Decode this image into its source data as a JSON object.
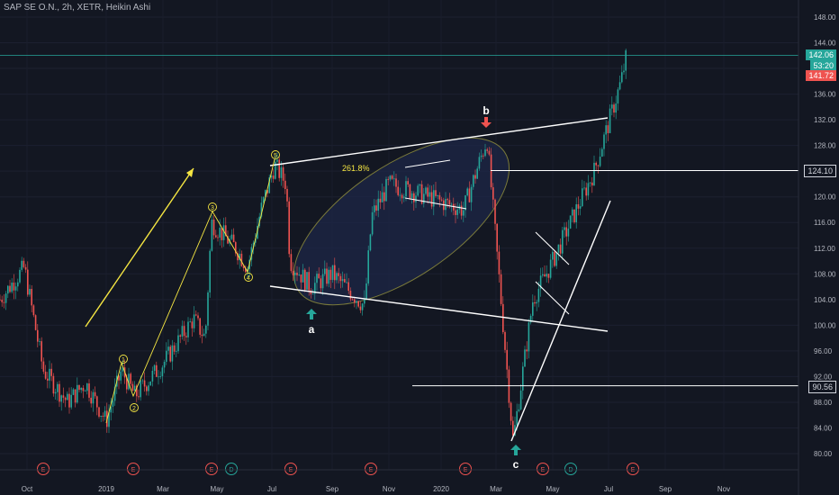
{
  "header": {
    "symbol_line": "SAP SE O.N., 2h, XETR, Heikin Ashi"
  },
  "price_tags": [
    {
      "text": "142.06",
      "price": 142.06,
      "bg": "#26a69a"
    },
    {
      "text": "53:20",
      "price": 140.4,
      "bg": "#26a69a"
    },
    {
      "text": "141.72",
      "price": 138.9,
      "bg": "#ef5350"
    },
    {
      "text": "124.10",
      "price": 124.1,
      "bg": "#131722",
      "border": "#d1d4dc"
    },
    {
      "text": "90.56",
      "price": 90.56,
      "bg": "#131722",
      "border": "#d1d4dc"
    }
  ],
  "colors": {
    "background": "#131722",
    "up": "#26a69a",
    "down": "#ef5350",
    "wave_label": "#f5e642",
    "annotation_line": "#ffffff",
    "ellipse_fill": "#1e2747",
    "ellipse_stroke": "#7a7a3a",
    "current_price_line": "#26a69a"
  },
  "chart_data": {
    "type": "candlestick",
    "style": "Heikin Ashi",
    "interval": "2h",
    "ylim": [
      78,
      150
    ],
    "y_ticks": [
      80,
      84,
      88,
      92,
      96,
      100,
      104,
      108,
      112,
      116,
      120,
      124,
      128,
      132,
      136,
      140,
      144,
      148
    ],
    "y_tick_labels": [
      "80.00",
      "84.00",
      "88.00",
      "92.00",
      "96.00",
      "100.00",
      "104.00",
      "108.00",
      "112.00",
      "116.00",
      "120.00",
      "124.00",
      "128.00",
      "132.00",
      "136.00",
      "140.00",
      "144.00",
      "148.00"
    ],
    "x_ticks": [
      "Oct",
      "2019",
      "Mar",
      "May",
      "Jul",
      "Sep",
      "Nov",
      "2020",
      "Mar",
      "May",
      "Jul",
      "Sep",
      "Nov"
    ],
    "price_path": [
      [
        "Oct",
        104
      ],
      [
        "Nov",
        109
      ],
      [
        "Dec",
        93
      ],
      [
        "2019",
        88
      ],
      [
        "Jan mid",
        91
      ],
      [
        "Jan end",
        85
      ],
      [
        "Feb",
        93
      ],
      [
        "Feb end",
        89
      ],
      [
        "Mar",
        94
      ],
      [
        "Apr",
        101
      ],
      [
        "Apr end",
        98
      ],
      [
        "May",
        116
      ],
      [
        "May mid",
        112
      ],
      [
        "Jun",
        109
      ],
      [
        "Jun end",
        118
      ],
      [
        "Jul",
        125
      ],
      [
        "Jul mid",
        122
      ],
      [
        "Jul end",
        110
      ],
      [
        "Aug",
        106
      ],
      [
        "Sep",
        108
      ],
      [
        "Oct",
        103
      ],
      [
        "Oct end",
        117
      ],
      [
        "Nov",
        122
      ],
      [
        "Dec",
        121
      ],
      [
        "Jan",
        118
      ],
      [
        "Feb",
        129
      ],
      [
        "Mar",
        108
      ],
      [
        "Mar mid",
        82
      ],
      [
        "Apr",
        104
      ],
      [
        "May",
        110
      ],
      [
        "Jun",
        124
      ],
      [
        "Jul",
        138
      ],
      [
        "Jul end",
        142.06
      ]
    ],
    "last_price": 142.06,
    "levels": [
      124.1,
      90.56
    ],
    "wave_labels": [
      "1",
      "2",
      "3",
      "4",
      "5"
    ],
    "letter_labels": [
      "a",
      "b",
      "c"
    ],
    "annotations": [
      "261.8%"
    ],
    "event_markers": [
      "E",
      "E",
      "E",
      "D",
      "E",
      "E",
      "E",
      "E",
      "D",
      "E"
    ]
  }
}
